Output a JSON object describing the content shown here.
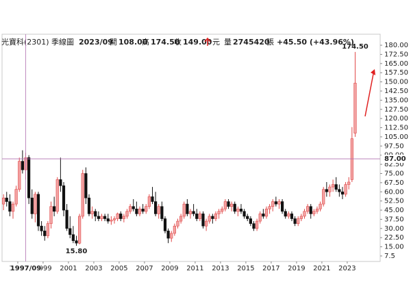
{
  "header": {
    "name": "光寶科(2301)",
    "period": "季線圖",
    "date": "2023/09",
    "open_label": "開",
    "open": "108.00",
    "high_label": "高",
    "high": "174.50",
    "close_label": "收",
    "close": "149.00",
    "unit": "元",
    "volume_label": "量",
    "volume": "2745420",
    "volume_unit": "張",
    "change": "+45.50 (+43.96%)"
  },
  "chart_data": {
    "type": "candlestick",
    "up_color": "#f2a3a3",
    "up_edge": "#e04848",
    "down_color": "#111111",
    "xlim": [
      1995.76,
      2025.6
    ],
    "ylim": [
      3,
      189
    ],
    "xticks": [
      1997,
      1999,
      2001,
      2003,
      2005,
      2007,
      2009,
      2011,
      2013,
      2015,
      2017,
      2019,
      2021,
      2023
    ],
    "yticks": [
      {
        "value": 180,
        "label": "180.00"
      },
      {
        "value": 172.5,
        "label": "172.50"
      },
      {
        "value": 165,
        "label": "165.00"
      },
      {
        "value": 157.5,
        "label": "157.50"
      },
      {
        "value": 150,
        "label": "150.00"
      },
      {
        "value": 142.5,
        "label": "142.50"
      },
      {
        "value": 135,
        "label": "135.00"
      },
      {
        "value": 127.5,
        "label": "127.50"
      },
      {
        "value": 120,
        "label": "120.00"
      },
      {
        "value": 112.5,
        "label": "112.50"
      },
      {
        "value": 105,
        "label": "105.00"
      },
      {
        "value": 97.5,
        "label": "97.50"
      },
      {
        "value": 90,
        "label": "90.00"
      },
      {
        "value": 82.5,
        "label": "82.50"
      },
      {
        "value": 75,
        "label": "75.00"
      },
      {
        "value": 67.5,
        "label": "67.50"
      },
      {
        "value": 60,
        "label": "60.00"
      },
      {
        "value": 52.5,
        "label": "52.50"
      },
      {
        "value": 45,
        "label": "45.00"
      },
      {
        "value": 37.5,
        "label": "37.50"
      },
      {
        "value": 30,
        "label": "30.00"
      },
      {
        "value": 22.5,
        "label": "22.50"
      },
      {
        "value": 15,
        "label": "15.00"
      },
      7.5
    ],
    "annotations": [
      {
        "value": 174.5,
        "label": "174.50"
      },
      {
        "value": 15.8,
        "label": "15.80"
      }
    ],
    "cursor": {
      "x_label": "1997/09",
      "y_value": 87,
      "y_label": "87.00"
    },
    "x": [
      1995.875,
      1996.125,
      1996.375,
      1996.625,
      1996.875,
      1997.125,
      1997.375,
      1997.625,
      1997.875,
      1998.125,
      1998.375,
      1998.625,
      1998.875,
      1999.125,
      1999.375,
      1999.625,
      1999.875,
      2000.125,
      2000.375,
      2000.625,
      2000.875,
      2001.125,
      2001.375,
      2001.625,
      2001.875,
      2002.125,
      2002.375,
      2002.625,
      2002.875,
      2003.125,
      2003.375,
      2003.625,
      2003.875,
      2004.125,
      2004.375,
      2004.625,
      2004.875,
      2005.125,
      2005.375,
      2005.625,
      2005.875,
      2006.125,
      2006.375,
      2006.625,
      2006.875,
      2007.125,
      2007.375,
      2007.625,
      2007.875,
      2008.125,
      2008.375,
      2008.625,
      2008.875,
      2009.125,
      2009.375,
      2009.625,
      2009.875,
      2010.125,
      2010.375,
      2010.625,
      2010.875,
      2011.125,
      2011.375,
      2011.625,
      2011.875,
      2012.125,
      2012.375,
      2012.625,
      2012.875,
      2013.125,
      2013.375,
      2013.625,
      2013.875,
      2014.125,
      2014.375,
      2014.625,
      2014.875,
      2015.125,
      2015.375,
      2015.625,
      2015.875,
      2016.125,
      2016.375,
      2016.625,
      2016.875,
      2017.125,
      2017.375,
      2017.625,
      2017.875,
      2018.125,
      2018.375,
      2018.625,
      2018.875,
      2019.125,
      2019.375,
      2019.625,
      2019.875,
      2020.125,
      2020.375,
      2020.625,
      2020.875,
      2021.125,
      2021.375,
      2021.625,
      2021.875,
      2022.125,
      2022.375,
      2022.625,
      2022.875,
      2023.125,
      2023.375,
      2023.625
    ],
    "candles": [
      [
        50,
        58,
        45,
        55
      ],
      [
        55,
        60,
        48,
        52
      ],
      [
        52,
        58,
        40,
        44
      ],
      [
        44,
        52,
        38,
        50
      ],
      [
        50,
        65,
        48,
        62
      ],
      [
        62,
        88,
        60,
        85
      ],
      [
        85,
        94,
        75,
        78
      ],
      [
        78,
        92,
        70,
        88
      ],
      [
        88,
        90,
        50,
        55
      ],
      [
        55,
        62,
        38,
        42
      ],
      [
        42,
        60,
        35,
        58
      ],
      [
        58,
        60,
        28,
        32
      ],
      [
        32,
        36,
        24,
        28
      ],
      [
        28,
        32,
        20,
        24
      ],
      [
        24,
        36,
        22,
        34
      ],
      [
        34,
        52,
        30,
        48
      ],
      [
        48,
        56,
        40,
        44
      ],
      [
        44,
        72,
        42,
        70
      ],
      [
        70,
        88,
        60,
        65
      ],
      [
        65,
        68,
        40,
        45
      ],
      [
        45,
        50,
        28,
        30
      ],
      [
        30,
        40,
        22,
        25
      ],
      [
        25,
        32,
        18,
        20
      ],
      [
        20,
        24,
        15.8,
        18
      ],
      [
        18,
        42,
        17,
        40
      ],
      [
        40,
        78,
        38,
        75
      ],
      [
        75,
        80,
        50,
        55
      ],
      [
        55,
        58,
        40,
        42
      ],
      [
        42,
        48,
        38,
        44
      ],
      [
        44,
        46,
        36,
        40
      ],
      [
        40,
        44,
        36,
        38
      ],
      [
        38,
        42,
        36,
        40
      ],
      [
        40,
        42,
        36,
        38
      ],
      [
        38,
        42,
        34,
        36
      ],
      [
        36,
        40,
        33,
        37
      ],
      [
        37,
        40,
        34,
        38
      ],
      [
        38,
        43,
        36,
        42
      ],
      [
        42,
        44,
        36,
        38
      ],
      [
        38,
        42,
        35,
        40
      ],
      [
        40,
        46,
        38,
        44
      ],
      [
        44,
        50,
        42,
        48
      ],
      [
        48,
        54,
        44,
        46
      ],
      [
        46,
        52,
        40,
        42
      ],
      [
        42,
        48,
        40,
        46
      ],
      [
        46,
        50,
        42,
        44
      ],
      [
        44,
        50,
        42,
        48
      ],
      [
        48,
        58,
        46,
        56
      ],
      [
        56,
        64,
        50,
        52
      ],
      [
        52,
        60,
        40,
        42
      ],
      [
        42,
        50,
        38,
        48
      ],
      [
        48,
        52,
        36,
        38
      ],
      [
        38,
        40,
        26,
        28
      ],
      [
        28,
        30,
        18,
        22
      ],
      [
        22,
        28,
        19,
        26
      ],
      [
        26,
        34,
        24,
        32
      ],
      [
        32,
        38,
        30,
        36
      ],
      [
        36,
        42,
        34,
        40
      ],
      [
        40,
        52,
        38,
        50
      ],
      [
        50,
        54,
        40,
        42
      ],
      [
        42,
        46,
        38,
        44
      ],
      [
        44,
        50,
        40,
        42
      ],
      [
        42,
        46,
        36,
        38
      ],
      [
        38,
        44,
        36,
        42
      ],
      [
        42,
        44,
        30,
        32
      ],
      [
        32,
        38,
        28,
        36
      ],
      [
        36,
        42,
        34,
        40
      ],
      [
        40,
        42,
        34,
        38
      ],
      [
        38,
        44,
        36,
        42
      ],
      [
        42,
        46,
        38,
        44
      ],
      [
        44,
        48,
        42,
        46
      ],
      [
        46,
        54,
        44,
        52
      ],
      [
        52,
        54,
        46,
        48
      ],
      [
        48,
        52,
        44,
        50
      ],
      [
        50,
        52,
        42,
        44
      ],
      [
        44,
        48,
        40,
        46
      ],
      [
        46,
        50,
        42,
        44
      ],
      [
        44,
        46,
        38,
        40
      ],
      [
        40,
        42,
        36,
        38
      ],
      [
        38,
        40,
        32,
        34
      ],
      [
        34,
        36,
        28,
        30
      ],
      [
        30,
        38,
        28,
        36
      ],
      [
        36,
        44,
        34,
        42
      ],
      [
        42,
        46,
        38,
        40
      ],
      [
        40,
        48,
        38,
        46
      ],
      [
        46,
        50,
        42,
        48
      ],
      [
        48,
        54,
        44,
        52
      ],
      [
        52,
        56,
        48,
        50
      ],
      [
        50,
        54,
        46,
        52
      ],
      [
        52,
        54,
        42,
        44
      ],
      [
        44,
        46,
        38,
        40
      ],
      [
        40,
        44,
        38,
        42
      ],
      [
        42,
        44,
        36,
        38
      ],
      [
        38,
        40,
        32,
        34
      ],
      [
        34,
        40,
        32,
        38
      ],
      [
        38,
        42,
        36,
        40
      ],
      [
        40,
        46,
        38,
        44
      ],
      [
        44,
        50,
        42,
        48
      ],
      [
        48,
        50,
        38,
        42
      ],
      [
        42,
        46,
        40,
        44
      ],
      [
        44,
        48,
        42,
        46
      ],
      [
        46,
        52,
        44,
        50
      ],
      [
        50,
        64,
        48,
        62
      ],
      [
        62,
        68,
        56,
        60
      ],
      [
        60,
        66,
        56,
        64
      ],
      [
        64,
        70,
        60,
        66
      ],
      [
        66,
        72,
        60,
        62
      ],
      [
        62,
        66,
        56,
        60
      ],
      [
        60,
        64,
        54,
        58
      ],
      [
        58,
        68,
        56,
        66
      ],
      [
        66,
        72,
        62,
        68
      ],
      [
        70,
        113,
        68,
        103.5
      ],
      [
        108,
        174.5,
        105,
        149
      ]
    ]
  }
}
